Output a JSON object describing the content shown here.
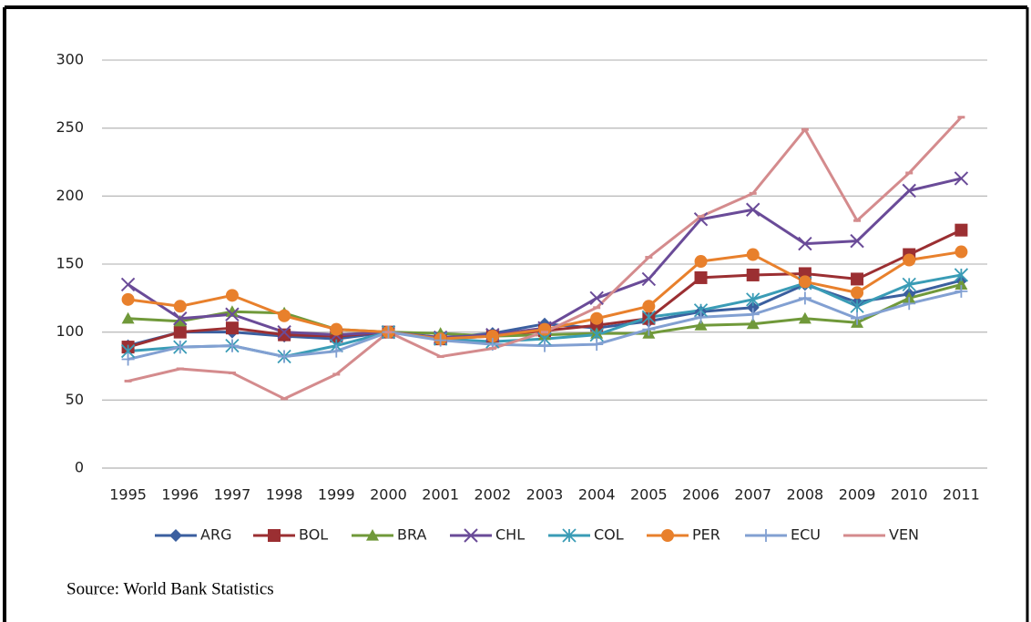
{
  "chart_data": {
    "type": "line",
    "categories": [
      "1995",
      "1996",
      "1997",
      "1998",
      "1999",
      "2000",
      "2001",
      "2002",
      "2003",
      "2004",
      "2005",
      "2006",
      "2007",
      "2008",
      "2009",
      "2010",
      "2011"
    ],
    "ylim": [
      0,
      300
    ],
    "yticks": [
      0,
      50,
      100,
      150,
      200,
      250,
      300
    ],
    "grid": true,
    "legend": "bottom",
    "series": [
      {
        "name": "ARG",
        "color": "#3b5f9f",
        "marker": "diamond",
        "values": [
          90,
          100,
          100,
          97,
          95,
          100,
          96,
          99,
          106,
          103,
          108,
          115,
          118,
          135,
          122,
          128,
          138
        ]
      },
      {
        "name": "BOL",
        "color": "#9b2f32",
        "marker": "square",
        "values": [
          89,
          100,
          103,
          98,
          97,
          100,
          95,
          97,
          101,
          105,
          110,
          140,
          142,
          143,
          139,
          157,
          175
        ]
      },
      {
        "name": "BRA",
        "color": "#70993a",
        "marker": "triangle",
        "values": [
          110,
          108,
          115,
          114,
          102,
          100,
          99,
          97,
          98,
          99,
          99,
          105,
          106,
          110,
          107,
          125,
          135
        ]
      },
      {
        "name": "CHL",
        "color": "#6a4b98",
        "marker": "x",
        "values": [
          135,
          110,
          113,
          100,
          98,
          100,
          96,
          98,
          103,
          125,
          139,
          183,
          190,
          165,
          167,
          204,
          213
        ]
      },
      {
        "name": "COL",
        "color": "#3a9cb6",
        "marker": "star",
        "values": [
          86,
          89,
          90,
          82,
          90,
          100,
          95,
          93,
          95,
          98,
          111,
          116,
          124,
          136,
          119,
          135,
          142
        ]
      },
      {
        "name": "PER",
        "color": "#e8802c",
        "marker": "circle",
        "values": [
          124,
          119,
          127,
          112,
          102,
          100,
          95,
          97,
          102,
          110,
          119,
          152,
          157,
          137,
          129,
          153,
          159
        ]
      },
      {
        "name": "ECU",
        "color": "#82a0d2",
        "marker": "plus",
        "values": [
          80,
          89,
          90,
          82,
          86,
          100,
          94,
          91,
          90,
          91,
          102,
          111,
          113,
          125,
          110,
          121,
          130
        ]
      },
      {
        "name": "VEN",
        "color": "#d48b8d",
        "marker": "dash",
        "values": [
          64,
          73,
          70,
          51,
          69,
          100,
          82,
          88,
          100,
          118,
          155,
          185,
          202,
          249,
          182,
          217,
          258
        ]
      }
    ]
  },
  "source": "Source:  World Bank Statistics"
}
